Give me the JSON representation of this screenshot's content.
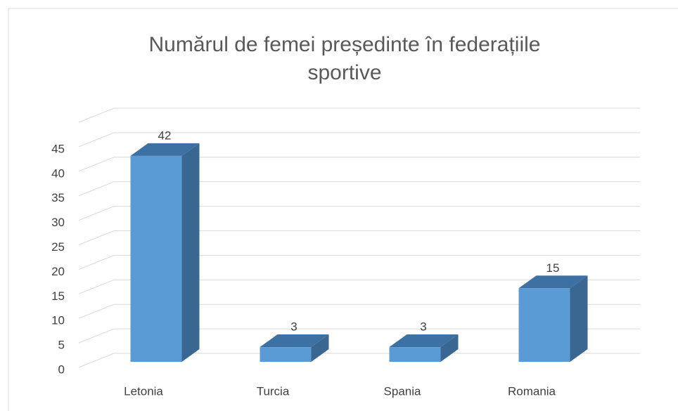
{
  "chart_data": {
    "type": "bar3d",
    "title": "Numărul de femei președinte în federațiile sportive",
    "categories": [
      "Letonia",
      "Turcia",
      "Spania",
      "Romania"
    ],
    "values": [
      42,
      3,
      3,
      15
    ],
    "color": "#5b9bd5",
    "ylim": [
      0,
      50
    ],
    "yticks": [
      0,
      5,
      10,
      15,
      20,
      25,
      30,
      35,
      40,
      45
    ],
    "grid": true
  }
}
